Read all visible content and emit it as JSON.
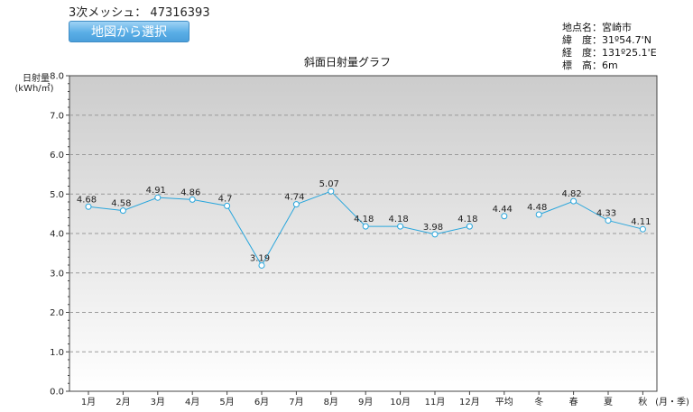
{
  "header": {
    "mesh_label": "3次メッシュ：",
    "mesh_code": "47316393",
    "map_button_label": "地図から選択"
  },
  "location": {
    "name_label": "地点名：",
    "name_value": "宮崎市",
    "lat_label": "緯　度：",
    "lat_value": "31º54.7'N",
    "lon_label": "経　度：",
    "lon_value": "131º25.1'E",
    "alt_label": "標　高：",
    "alt_value": "6m"
  },
  "chart_data": {
    "type": "line",
    "title": "斜面日射量グラフ",
    "ylabel": "日射量",
    "yunit": "(kWh/㎡)",
    "xunit": "(月・季)",
    "ylim": [
      0,
      8
    ],
    "yticks": [
      "0.0",
      "1.0",
      "2.0",
      "3.0",
      "4.0",
      "5.0",
      "6.0",
      "7.0",
      "8.0"
    ],
    "categories": [
      "1月",
      "2月",
      "3月",
      "4月",
      "5月",
      "6月",
      "7月",
      "8月",
      "9月",
      "10月",
      "11月",
      "12月",
      "平均",
      "冬",
      "春",
      "夏",
      "秋"
    ],
    "values": [
      4.68,
      4.58,
      4.91,
      4.86,
      4.7,
      3.19,
      4.74,
      5.07,
      4.18,
      4.18,
      3.98,
      4.18,
      4.44,
      4.48,
      4.82,
      4.33,
      4.11
    ],
    "value_labels": [
      "4.68",
      "4.58",
      "4.91",
      "4.86",
      "4.7",
      "3.19",
      "4.74",
      "5.07",
      "4.18",
      "4.18",
      "3.98",
      "4.18",
      "4.44",
      "4.48",
      "4.82",
      "4.33",
      "4.11"
    ],
    "line_segments": [
      [
        0,
        11
      ],
      [
        13,
        16
      ]
    ],
    "grid": true,
    "colors": {
      "line": "#29a6dc",
      "grid": "#9a9a9a",
      "plot_top": "#cccccc",
      "plot_bottom": "#ffffff"
    }
  }
}
